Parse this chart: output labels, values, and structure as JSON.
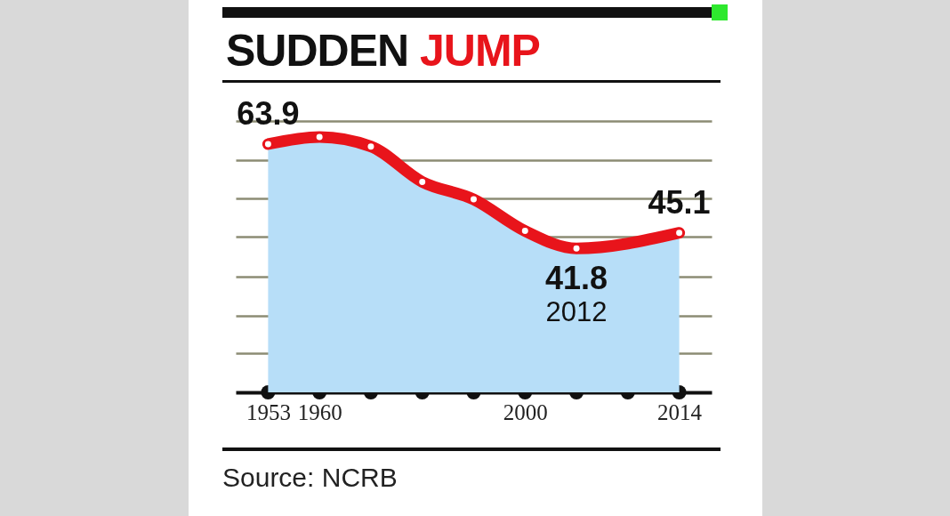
{
  "chart_data": {
    "type": "area",
    "title": "SUDDEN JUMP",
    "categories": [
      "1953",
      "1960",
      null,
      null,
      null,
      "2000",
      null,
      null,
      "2014"
    ],
    "series": [
      {
        "color": "#b7def8",
        "values": [
          63.9,
          65.4,
          63.4,
          55.9,
          52.2,
          45.5,
          41.8,
          null,
          45.1
        ]
      },
      {
        "type": "line",
        "marker": "circle",
        "color": "#e8141b",
        "values": [
          63.9,
          65.4,
          63.4,
          55.9,
          52.2,
          45.5,
          41.8,
          null,
          45.1
        ],
        "value_labels": [
          "63.9",
          null,
          null,
          null,
          null,
          null,
          "41.8",
          null,
          "45.1"
        ]
      }
    ],
    "ylim": [
      11.3,
      68.8
    ],
    "yticks": [
      {
        "value": 19.6,
        "label": null
      },
      {
        "value": 27.6,
        "label": null
      },
      {
        "value": 35.8,
        "label": null
      },
      {
        "value": 44.2,
        "label": null
      },
      {
        "value": 52.4,
        "label": null
      },
      {
        "value": 60.5,
        "label": null
      },
      {
        "value": 68.8,
        "label": null
      }
    ],
    "tick_labels": "x",
    "grid": "y",
    "annotations": [
      {
        "text": "2012",
        "y": 41.8
      },
      "Source: NCRB"
    ]
  }
}
